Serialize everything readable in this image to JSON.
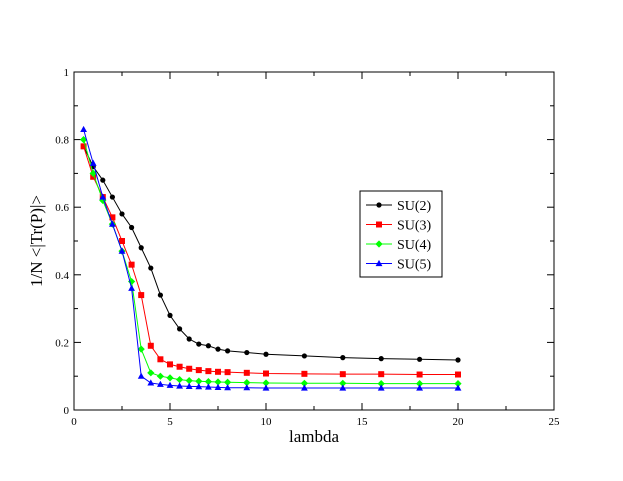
{
  "chart_data": {
    "type": "line",
    "title": "",
    "xlabel": "lambda",
    "ylabel": "1/N <|Tr(P)|>",
    "xlim": [
      0,
      25
    ],
    "ylim": [
      0,
      1
    ],
    "xticks": [
      0,
      5,
      10,
      15,
      20,
      25
    ],
    "yticks": [
      0,
      0.2,
      0.4,
      0.6,
      0.8,
      1
    ],
    "xtick_labels": [
      "0",
      "5",
      "10",
      "15",
      "20",
      "25"
    ],
    "ytick_labels": [
      "0",
      "0.2",
      "0.4",
      "0.6",
      "0.8",
      "1"
    ],
    "grid": false,
    "legend_position": "center-right",
    "series": [
      {
        "name": "SU(2)",
        "color": "#000000",
        "marker": "circle",
        "x": [
          0.5,
          1.0,
          1.5,
          2.0,
          2.5,
          3.0,
          3.5,
          4.0,
          4.5,
          5.0,
          5.5,
          6.0,
          6.5,
          7.0,
          7.5,
          8.0,
          9.0,
          10.0,
          12.0,
          14.0,
          16.0,
          18.0,
          20.0
        ],
        "y": [
          0.78,
          0.72,
          0.68,
          0.63,
          0.58,
          0.54,
          0.48,
          0.42,
          0.34,
          0.28,
          0.24,
          0.21,
          0.195,
          0.19,
          0.18,
          0.175,
          0.17,
          0.165,
          0.16,
          0.155,
          0.152,
          0.15,
          0.148
        ]
      },
      {
        "name": "SU(3)",
        "color": "#ff0000",
        "marker": "square",
        "x": [
          0.5,
          1.0,
          1.5,
          2.0,
          2.5,
          3.0,
          3.5,
          4.0,
          4.5,
          5.0,
          5.5,
          6.0,
          6.5,
          7.0,
          7.5,
          8.0,
          9.0,
          10.0,
          12.0,
          14.0,
          16.0,
          18.0,
          20.0
        ],
        "y": [
          0.78,
          0.69,
          0.63,
          0.57,
          0.5,
          0.43,
          0.34,
          0.19,
          0.15,
          0.135,
          0.128,
          0.122,
          0.118,
          0.115,
          0.113,
          0.112,
          0.11,
          0.108,
          0.107,
          0.106,
          0.106,
          0.105,
          0.105
        ]
      },
      {
        "name": "SU(4)",
        "color": "#00ff00",
        "marker": "diamond",
        "x": [
          0.5,
          1.0,
          1.5,
          2.0,
          2.5,
          3.0,
          3.5,
          4.0,
          4.5,
          5.0,
          5.5,
          6.0,
          6.5,
          7.0,
          7.5,
          8.0,
          9.0,
          10.0,
          12.0,
          14.0,
          16.0,
          18.0,
          20.0
        ],
        "y": [
          0.8,
          0.7,
          0.62,
          0.55,
          0.47,
          0.38,
          0.18,
          0.11,
          0.1,
          0.095,
          0.09,
          0.087,
          0.085,
          0.084,
          0.083,
          0.082,
          0.081,
          0.08,
          0.079,
          0.079,
          0.078,
          0.078,
          0.078
        ]
      },
      {
        "name": "SU(5)",
        "color": "#0000ff",
        "marker": "triangle",
        "x": [
          0.5,
          1.0,
          1.5,
          2.0,
          2.5,
          3.0,
          3.5,
          4.0,
          4.5,
          5.0,
          5.5,
          6.0,
          6.5,
          7.0,
          7.5,
          8.0,
          9.0,
          10.0,
          12.0,
          14.0,
          16.0,
          18.0,
          20.0
        ],
        "y": [
          0.83,
          0.73,
          0.63,
          0.55,
          0.47,
          0.36,
          0.1,
          0.08,
          0.076,
          0.073,
          0.071,
          0.07,
          0.069,
          0.068,
          0.067,
          0.066,
          0.066,
          0.065,
          0.065,
          0.065,
          0.065,
          0.065,
          0.065
        ]
      }
    ]
  }
}
